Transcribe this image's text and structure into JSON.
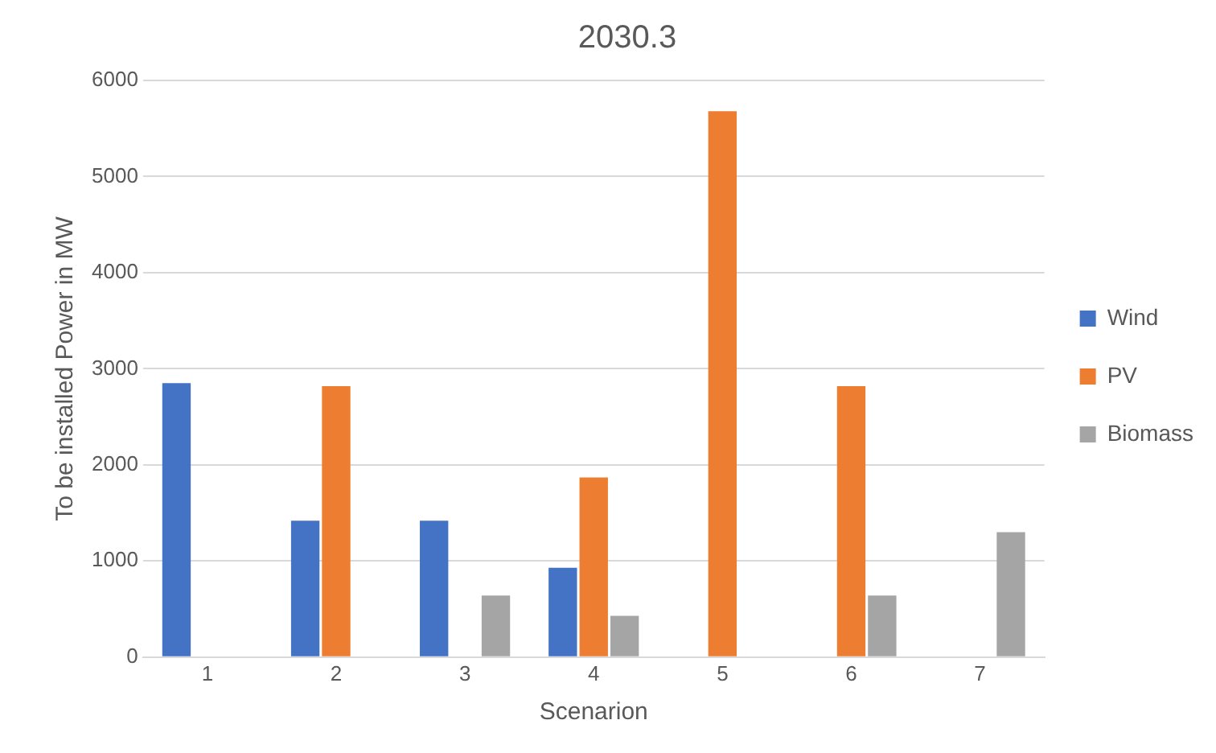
{
  "chart_data": {
    "type": "bar",
    "title": "2030.3",
    "xlabel": "Scenarion",
    "ylabel": "To be installed Power in MW",
    "categories": [
      "1",
      "2",
      "3",
      "4",
      "5",
      "6",
      "7"
    ],
    "series": [
      {
        "name": "Wind",
        "color": "#4472c4",
        "values": [
          2850,
          1420,
          1420,
          930,
          0,
          0,
          0
        ]
      },
      {
        "name": "PV",
        "color": "#ed7d31",
        "values": [
          0,
          2820,
          0,
          1870,
          5680,
          2820,
          0
        ]
      },
      {
        "name": "Biomass",
        "color": "#a5a5a5",
        "values": [
          0,
          0,
          640,
          430,
          0,
          640,
          1300
        ]
      }
    ],
    "ylim": [
      0,
      6000
    ],
    "yticks": [
      0,
      1000,
      2000,
      3000,
      4000,
      5000,
      6000
    ],
    "grid": "y",
    "legend": "right"
  }
}
